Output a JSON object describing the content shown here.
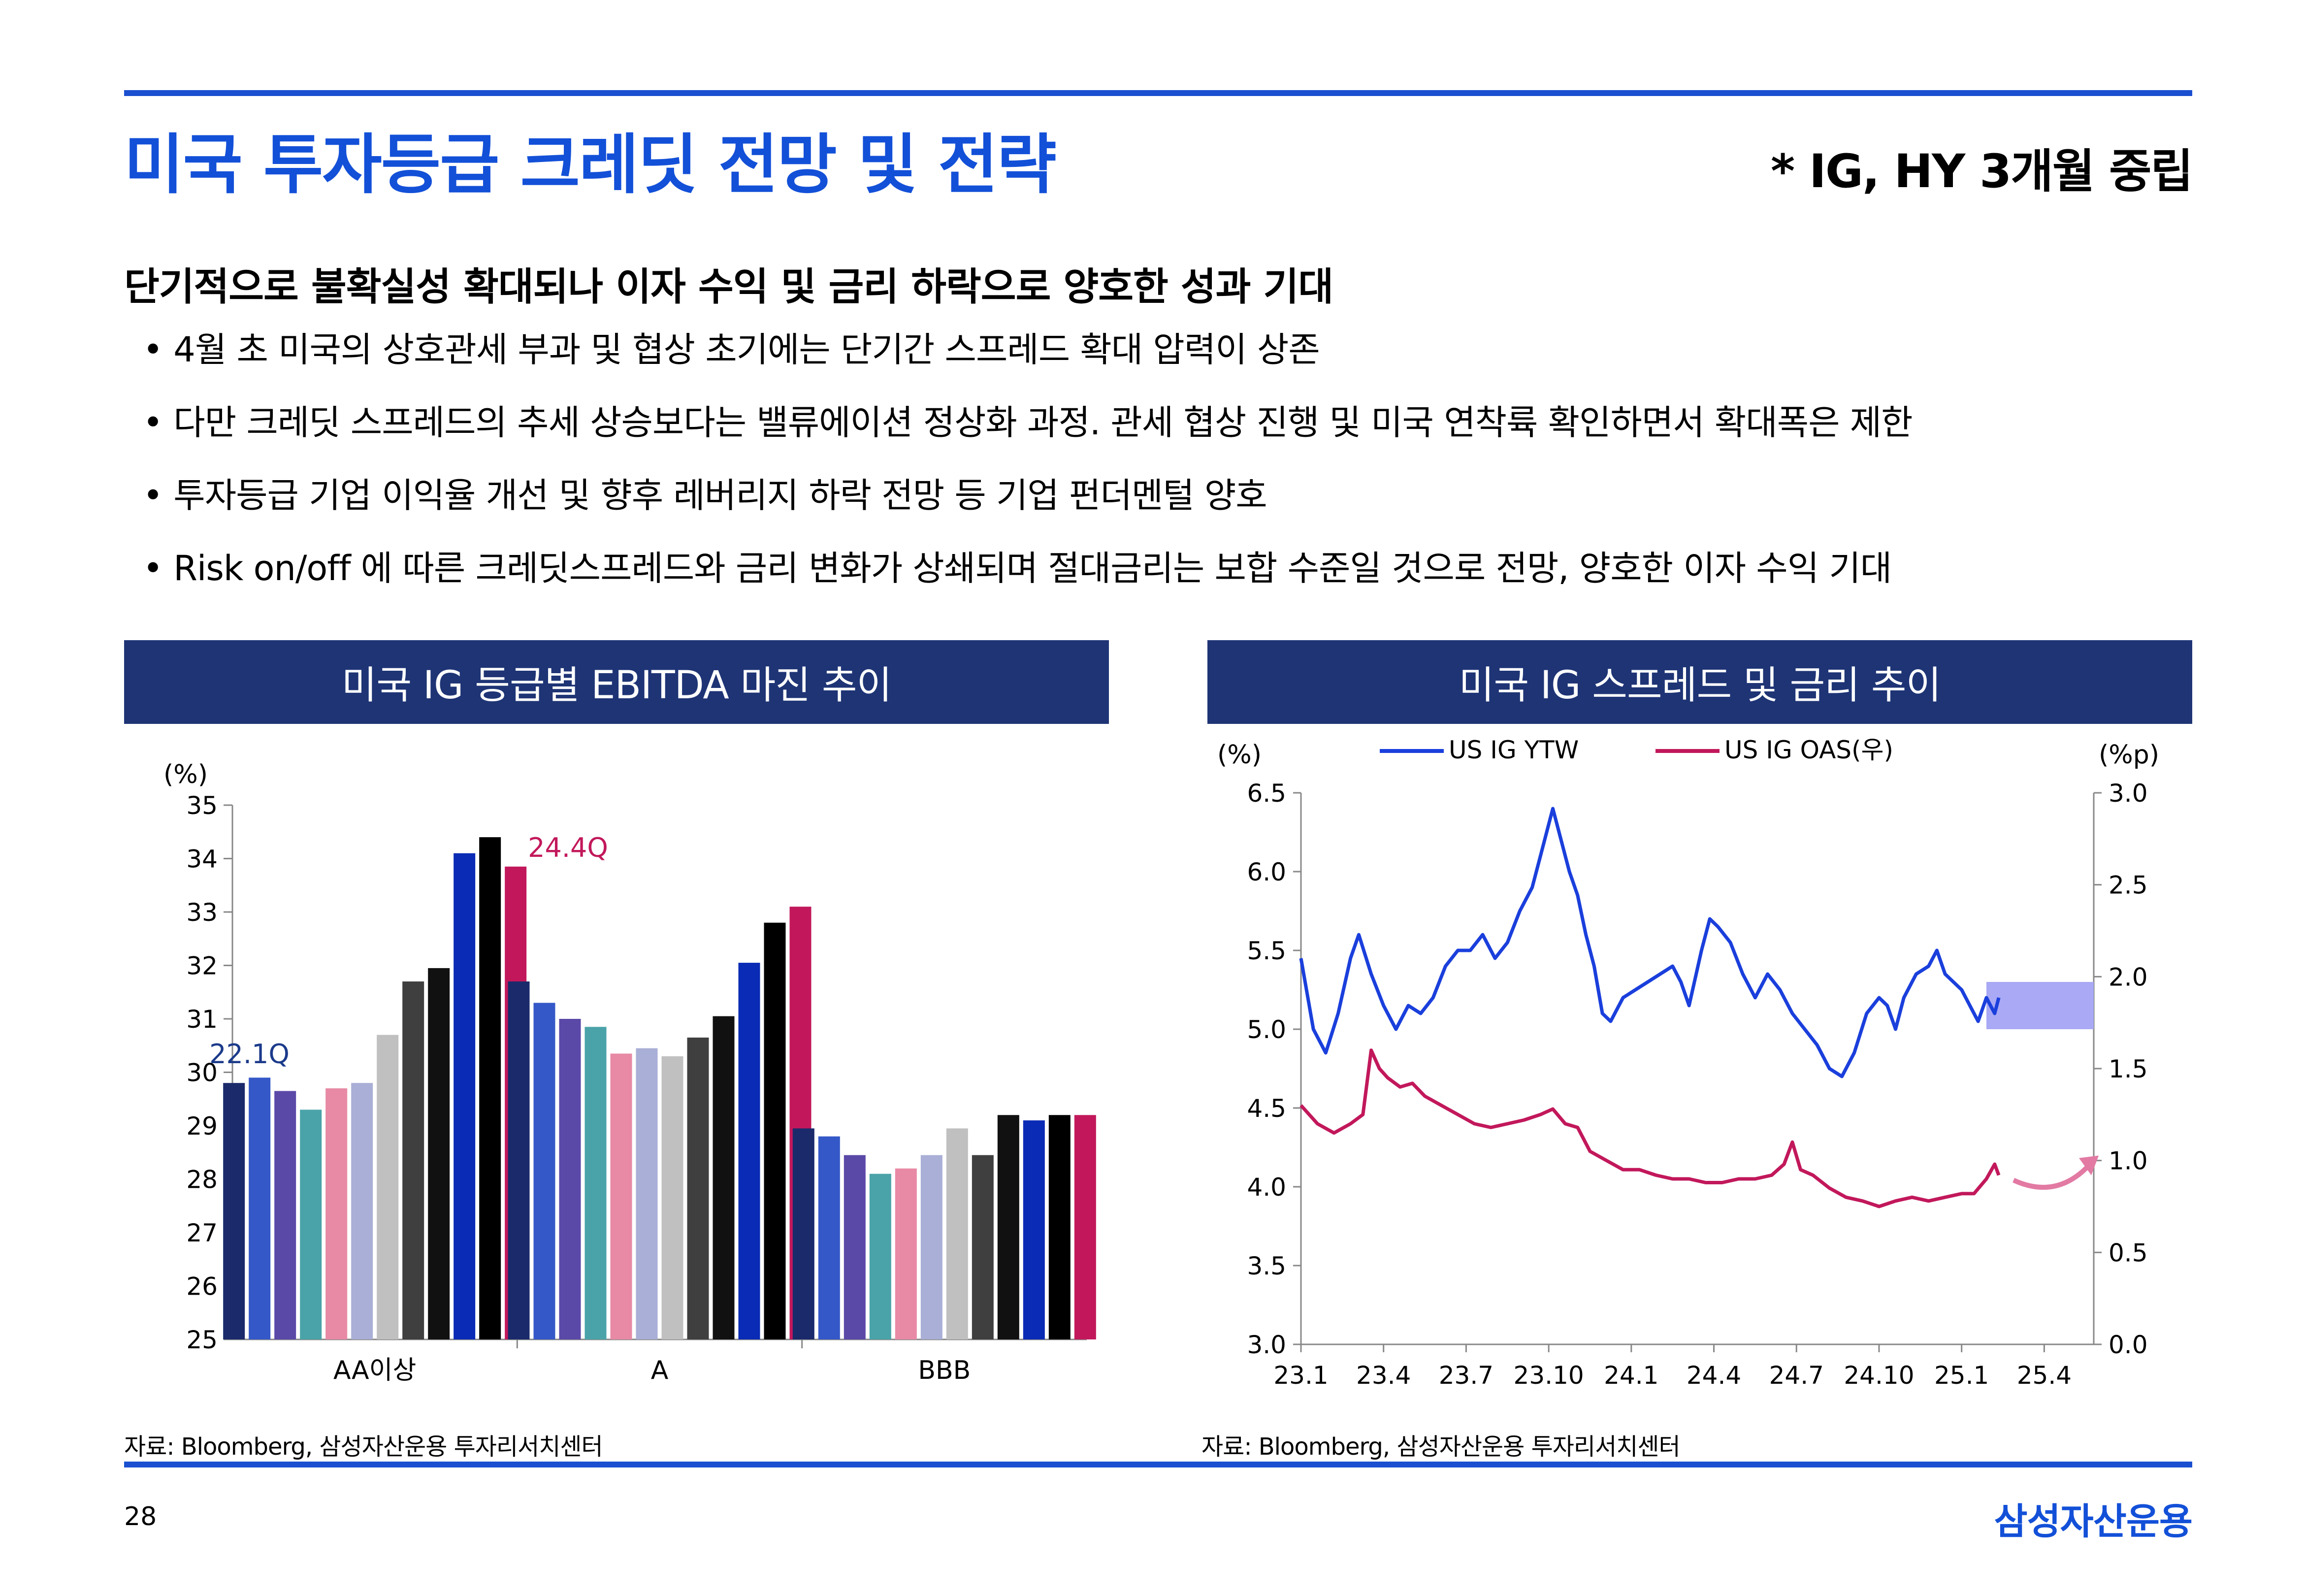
{
  "header": {
    "title": "미국 투자등급 크레딧 전망 및 전략",
    "stance": "* IG, HY 3개월 중립"
  },
  "summary": {
    "headline": "단기적으로 불확실성 확대되나 이자 수익 및 금리 하락으로 양호한 성과 기대",
    "bullets": [
      "4월 초 미국의 상호관세 부과 및 협상 초기에는 단기간 스프레드 확대 압력이 상존",
      "다만 크레딧 스프레드의 추세 상승보다는 밸류에이션 정상화 과정. 관세 협상 진행 및 미국 연착륙 확인하면서 확대폭은 제한",
      "투자등급 기업 이익율 개선 및 향후 레버리지 하락 전망 등 기업 펀더멘털 양호",
      "Risk on/off 에 따른 크레딧스프레드와 금리 변화가 상쇄되며 절대금리는 보합 수준일 것으로 전망, 양호한 이자 수익 기대"
    ]
  },
  "panels": {
    "left_title": "미국 IG 등급별 EBITDA 마진 추이",
    "right_title": "미국 IG 스프레드 및 금리 추이"
  },
  "sources": {
    "left": "자료: Bloomberg, 삼성자산운용 투자리서치센터",
    "right": "자료: Bloomberg, 삼성자산운용 투자리서치센터"
  },
  "footer": {
    "page_number": "28",
    "company": "삼성자산운용"
  },
  "colors": {
    "accent_blue": "#1350d8",
    "panel_navy": "#1e3475",
    "ytw_line": "#1a3fdc",
    "oas_line": "#c2185b",
    "highlight_box": "#a9a9f5"
  },
  "chart_data": [
    {
      "type": "bar",
      "ylabel": "(%)",
      "ylim": [
        25,
        35
      ],
      "yticks": [
        25,
        26,
        27,
        28,
        29,
        30,
        31,
        32,
        33,
        34,
        35
      ],
      "categories": [
        "AA이상",
        "A",
        "BBB"
      ],
      "series_colors": [
        "#1b2a6b",
        "#3558c8",
        "#5b49a8",
        "#4aa3a8",
        "#e88aa6",
        "#a9afd6",
        "#c0c0c0",
        "#3f3f3f",
        "#111111",
        "#0a2bb5",
        "#000000",
        "#c2185b"
      ],
      "values": [
        [
          29.8,
          29.9,
          29.65,
          29.3,
          29.7,
          29.8,
          30.7,
          31.7,
          31.95,
          34.1,
          34.4,
          33.85
        ],
        [
          31.7,
          31.3,
          31.0,
          30.85,
          30.35,
          30.45,
          30.3,
          30.65,
          31.05,
          32.05,
          32.8,
          33.1
        ],
        [
          28.95,
          28.8,
          28.45,
          28.1,
          28.2,
          28.45,
          28.95,
          28.45,
          29.2,
          29.1,
          29.2,
          29.2
        ]
      ],
      "annotations": [
        {
          "text": "22.1Q",
          "category": "AA이상",
          "bar": 0,
          "color": "#1b3a8a"
        },
        {
          "text": "24.4Q",
          "category": "AA이상",
          "bar": 11,
          "color": "#c2185b"
        }
      ]
    },
    {
      "type": "line",
      "ylabel_left": "(%)",
      "ylabel_right": "(%p)",
      "ylim_left": [
        3.0,
        6.5
      ],
      "ylim_right": [
        0.0,
        3.0
      ],
      "yticks_left": [
        "3.0",
        "3.5",
        "4.0",
        "4.5",
        "5.0",
        "5.5",
        "6.0",
        "6.5"
      ],
      "yticks_right": [
        "0.0",
        "0.5",
        "1.0",
        "1.5",
        "2.0",
        "2.5",
        "3.0"
      ],
      "xticks": [
        "23.1",
        "23.4",
        "23.7",
        "23.10",
        "24.1",
        "24.4",
        "24.7",
        "24.10",
        "25.1",
        "25.4"
      ],
      "x_range": [
        0,
        9.6
      ],
      "series": [
        {
          "name": "US IG YTW",
          "axis": "left",
          "color": "#1a3fdc",
          "points": [
            [
              0.0,
              5.45
            ],
            [
              0.15,
              5.0
            ],
            [
              0.3,
              4.85
            ],
            [
              0.45,
              5.1
            ],
            [
              0.6,
              5.45
            ],
            [
              0.7,
              5.6
            ],
            [
              0.85,
              5.35
            ],
            [
              1.0,
              5.15
            ],
            [
              1.15,
              5.0
            ],
            [
              1.3,
              5.15
            ],
            [
              1.45,
              5.1
            ],
            [
              1.6,
              5.2
            ],
            [
              1.75,
              5.4
            ],
            [
              1.9,
              5.5
            ],
            [
              2.05,
              5.5
            ],
            [
              2.2,
              5.6
            ],
            [
              2.35,
              5.45
            ],
            [
              2.5,
              5.55
            ],
            [
              2.65,
              5.75
            ],
            [
              2.8,
              5.9
            ],
            [
              2.9,
              6.1
            ],
            [
              3.0,
              6.3
            ],
            [
              3.05,
              6.4
            ],
            [
              3.15,
              6.2
            ],
            [
              3.25,
              6.0
            ],
            [
              3.35,
              5.85
            ],
            [
              3.45,
              5.6
            ],
            [
              3.55,
              5.4
            ],
            [
              3.65,
              5.1
            ],
            [
              3.75,
              5.05
            ],
            [
              3.9,
              5.2
            ],
            [
              4.05,
              5.25
            ],
            [
              4.2,
              5.3
            ],
            [
              4.35,
              5.35
            ],
            [
              4.5,
              5.4
            ],
            [
              4.6,
              5.3
            ],
            [
              4.7,
              5.15
            ],
            [
              4.85,
              5.5
            ],
            [
              4.95,
              5.7
            ],
            [
              5.05,
              5.65
            ],
            [
              5.2,
              5.55
            ],
            [
              5.35,
              5.35
            ],
            [
              5.5,
              5.2
            ],
            [
              5.65,
              5.35
            ],
            [
              5.8,
              5.25
            ],
            [
              5.95,
              5.1
            ],
            [
              6.1,
              5.0
            ],
            [
              6.25,
              4.9
            ],
            [
              6.4,
              4.75
            ],
            [
              6.55,
              4.7
            ],
            [
              6.7,
              4.85
            ],
            [
              6.85,
              5.1
            ],
            [
              7.0,
              5.2
            ],
            [
              7.1,
              5.15
            ],
            [
              7.2,
              5.0
            ],
            [
              7.3,
              5.2
            ],
            [
              7.45,
              5.35
            ],
            [
              7.6,
              5.4
            ],
            [
              7.7,
              5.5
            ],
            [
              7.8,
              5.35
            ],
            [
              7.9,
              5.3
            ],
            [
              8.0,
              5.25
            ],
            [
              8.1,
              5.15
            ],
            [
              8.2,
              5.05
            ],
            [
              8.3,
              5.2
            ],
            [
              8.4,
              5.1
            ],
            [
              8.45,
              5.2
            ]
          ]
        },
        {
          "name": "US IG OAS(우)",
          "axis": "right",
          "color": "#c2185b",
          "points": [
            [
              0.0,
              1.3
            ],
            [
              0.2,
              1.2
            ],
            [
              0.4,
              1.15
            ],
            [
              0.6,
              1.2
            ],
            [
              0.75,
              1.25
            ],
            [
              0.85,
              1.6
            ],
            [
              0.95,
              1.5
            ],
            [
              1.05,
              1.45
            ],
            [
              1.2,
              1.4
            ],
            [
              1.35,
              1.42
            ],
            [
              1.5,
              1.35
            ],
            [
              1.7,
              1.3
            ],
            [
              1.9,
              1.25
            ],
            [
              2.1,
              1.2
            ],
            [
              2.3,
              1.18
            ],
            [
              2.5,
              1.2
            ],
            [
              2.7,
              1.22
            ],
            [
              2.9,
              1.25
            ],
            [
              3.05,
              1.28
            ],
            [
              3.2,
              1.2
            ],
            [
              3.35,
              1.18
            ],
            [
              3.5,
              1.05
            ],
            [
              3.7,
              1.0
            ],
            [
              3.9,
              0.95
            ],
            [
              4.1,
              0.95
            ],
            [
              4.3,
              0.92
            ],
            [
              4.5,
              0.9
            ],
            [
              4.7,
              0.9
            ],
            [
              4.9,
              0.88
            ],
            [
              5.1,
              0.88
            ],
            [
              5.3,
              0.9
            ],
            [
              5.5,
              0.9
            ],
            [
              5.7,
              0.92
            ],
            [
              5.85,
              0.98
            ],
            [
              5.95,
              1.1
            ],
            [
              6.05,
              0.95
            ],
            [
              6.2,
              0.92
            ],
            [
              6.4,
              0.85
            ],
            [
              6.6,
              0.8
            ],
            [
              6.8,
              0.78
            ],
            [
              7.0,
              0.75
            ],
            [
              7.2,
              0.78
            ],
            [
              7.4,
              0.8
            ],
            [
              7.6,
              0.78
            ],
            [
              7.8,
              0.8
            ],
            [
              8.0,
              0.82
            ],
            [
              8.15,
              0.82
            ],
            [
              8.3,
              0.9
            ],
            [
              8.4,
              0.98
            ],
            [
              8.45,
              0.92
            ]
          ]
        }
      ],
      "highlight": {
        "x_from": 8.3,
        "x_to": 9.6,
        "y_from": 5.0,
        "y_to": 5.3,
        "axis": "left",
        "color": "#a9a9f5"
      }
    }
  ]
}
